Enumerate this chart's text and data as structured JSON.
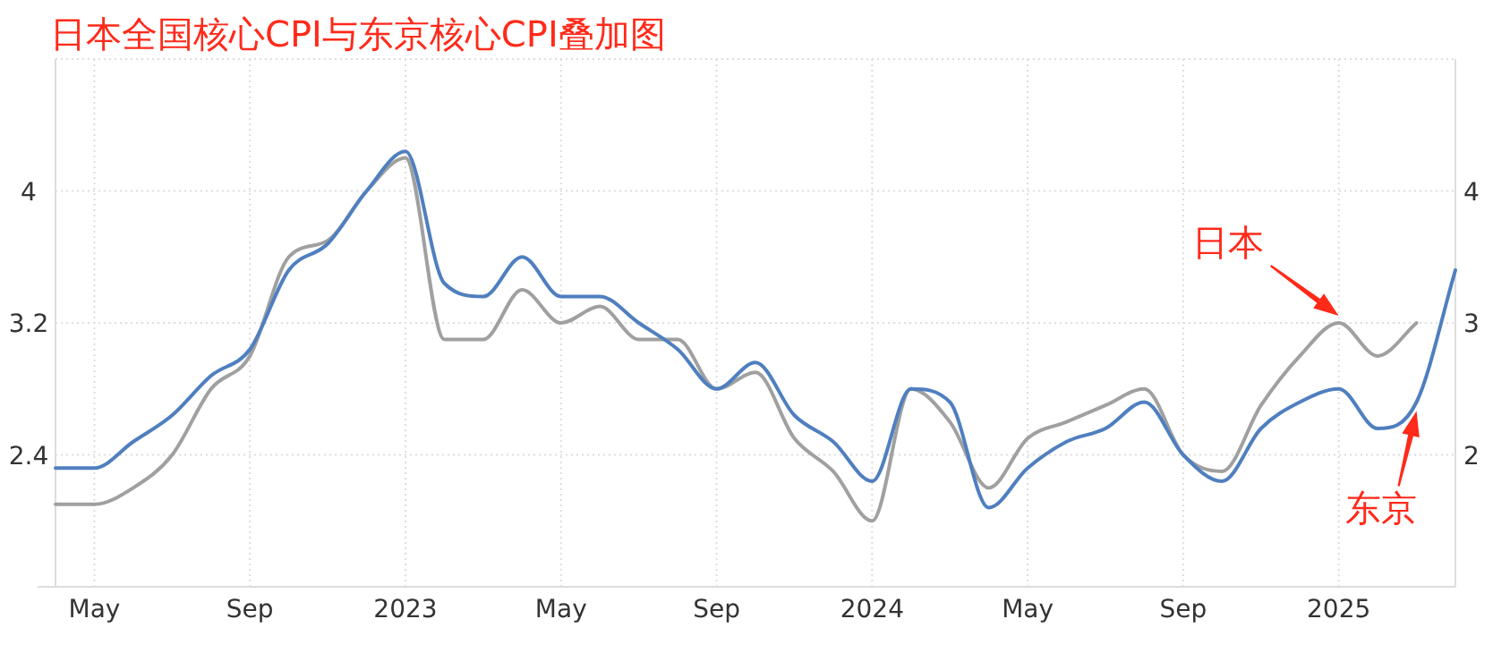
{
  "chart_data": {
    "type": "line",
    "title": "日本全国核心CPI与东京核心CPI叠加图",
    "series": [
      {
        "name": "日本",
        "color": "#a0a0a0",
        "x": [
          "2022-04",
          "2022-05",
          "2022-06",
          "2022-07",
          "2022-08",
          "2022-09",
          "2022-10",
          "2022-11",
          "2022-12",
          "2023-01",
          "2023-02",
          "2023-03",
          "2023-04",
          "2023-05",
          "2023-06",
          "2023-07",
          "2023-08",
          "2023-09",
          "2023-10",
          "2023-11",
          "2023-12",
          "2024-01",
          "2024-02",
          "2024-03",
          "2024-04",
          "2024-05",
          "2024-06",
          "2024-07",
          "2024-08",
          "2024-09",
          "2024-10",
          "2024-11",
          "2024-12",
          "2025-01",
          "2025-02",
          "2025-03"
        ],
        "values": [
          2.1,
          2.1,
          2.2,
          2.4,
          2.8,
          3.0,
          3.6,
          3.7,
          4.0,
          4.2,
          3.1,
          3.1,
          3.4,
          3.2,
          3.3,
          3.1,
          3.1,
          2.8,
          2.9,
          2.5,
          2.3,
          2.0,
          2.8,
          2.6,
          2.2,
          2.5,
          2.6,
          2.7,
          2.8,
          2.4,
          2.3,
          2.7,
          3.0,
          3.2,
          3.0,
          3.2
        ]
      },
      {
        "name": "东京",
        "color": "#4f7fbf",
        "axis": "y2",
        "x": [
          "2022-04",
          "2022-05",
          "2022-06",
          "2022-07",
          "2022-08",
          "2022-09",
          "2022-10",
          "2022-11",
          "2022-12",
          "2023-01",
          "2023-02",
          "2023-03",
          "2023-04",
          "2023-05",
          "2023-06",
          "2023-07",
          "2023-08",
          "2023-09",
          "2023-10",
          "2023-11",
          "2023-12",
          "2024-01",
          "2024-02",
          "2024-03",
          "2024-04",
          "2024-05",
          "2024-06",
          "2024-07",
          "2024-08",
          "2024-09",
          "2024-10",
          "2024-11",
          "2024-12",
          "2025-01",
          "2025-02",
          "2025-03",
          "2025-04"
        ],
        "values": [
          1.9,
          1.9,
          2.1,
          2.3,
          2.6,
          2.8,
          3.4,
          3.6,
          4.0,
          4.3,
          3.3,
          3.2,
          3.5,
          3.2,
          3.2,
          3.0,
          2.8,
          2.5,
          2.7,
          2.3,
          2.1,
          1.8,
          2.5,
          2.4,
          1.6,
          1.9,
          2.1,
          2.2,
          2.4,
          2.0,
          1.8,
          2.2,
          2.4,
          2.5,
          2.2,
          2.4,
          3.4
        ]
      }
    ],
    "xlim": [
      "2022-04",
      "2025-04"
    ],
    "xticks": [
      {
        "value": "2022-05",
        "label": "May"
      },
      {
        "value": "2022-09",
        "label": "Sep"
      },
      {
        "value": "2023-01",
        "label": "2023"
      },
      {
        "value": "2023-05",
        "label": "May"
      },
      {
        "value": "2023-09",
        "label": "Sep"
      },
      {
        "value": "2024-01",
        "label": "2024"
      },
      {
        "value": "2024-05",
        "label": "May"
      },
      {
        "value": "2024-09",
        "label": "Sep"
      },
      {
        "value": "2025-01",
        "label": "2025"
      }
    ],
    "ylim": [
      1.6,
      4.8
    ],
    "yticks": [
      2.4,
      3.2,
      4
    ],
    "y2lim": [
      1,
      5
    ],
    "y2ticks": [
      2,
      3,
      4
    ],
    "grid": true
  }
}
